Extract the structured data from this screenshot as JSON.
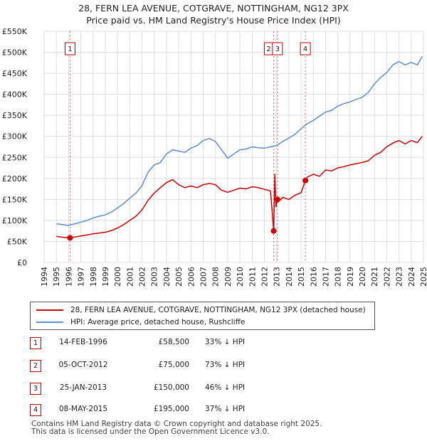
{
  "header": {
    "title_line1": "28, FERN LEA AVENUE, COTGRAVE, NOTTINGHAM, NG12 3PX",
    "title_line2": "Price paid vs. HM Land Registry's House Price Index (HPI)"
  },
  "chart_data": {
    "type": "line",
    "xlim": [
      1994,
      2025
    ],
    "ylim": [
      0,
      550000
    ],
    "yticks": [
      0,
      50000,
      100000,
      150000,
      200000,
      250000,
      300000,
      350000,
      400000,
      450000,
      500000,
      550000
    ],
    "ytick_labels": [
      "£0",
      "£50K",
      "£100K",
      "£150K",
      "£200K",
      "£250K",
      "£300K",
      "£350K",
      "£400K",
      "£450K",
      "£500K",
      "£550K"
    ],
    "xticks": [
      1994,
      1995,
      1996,
      1997,
      1998,
      1999,
      2000,
      2001,
      2002,
      2003,
      2004,
      2005,
      2006,
      2007,
      2008,
      2009,
      2010,
      2011,
      2012,
      2013,
      2014,
      2015,
      2016,
      2017,
      2018,
      2019,
      2020,
      2021,
      2022,
      2023,
      2024,
      2025
    ],
    "xtick_labels": [
      "1994",
      "1995",
      "1996",
      "1997",
      "1998",
      "1999",
      "2000",
      "2001",
      "2002",
      "2003",
      "2004",
      "2005",
      "2006",
      "2007",
      "2008",
      "2009",
      "2010",
      "2011",
      "2012",
      "2013",
      "2014",
      "2015",
      "2016",
      "2017",
      "2018",
      "2019",
      "2020",
      "2021",
      "2022",
      "2023",
      "2024",
      "2025"
    ],
    "grid": true,
    "series": [
      {
        "name": "28, FERN LEA AVENUE, COTGRAVE, NOTTINGHAM, NG12 3PX (detached house)",
        "color": "#cc0000",
        "x": [
          1995.0,
          1995.5,
          1996.12,
          1997,
          1998,
          1999,
          1999.5,
          2000,
          2000.5,
          2001,
          2001.5,
          2002,
          2002.5,
          2003,
          2003.5,
          2004,
          2004.5,
          2005,
          2005.5,
          2006,
          2006.5,
          2007,
          2007.5,
          2008,
          2008.5,
          2009,
          2009.5,
          2010,
          2010.5,
          2011,
          2011.5,
          2012,
          2012.5,
          2012.76,
          2012.85,
          2012.95,
          2013.07,
          2013.3,
          2013.5,
          2014,
          2014.5,
          2015,
          2015.35,
          2015.5,
          2016,
          2016.5,
          2017,
          2017.5,
          2018,
          2018.5,
          2019,
          2019.5,
          2020,
          2020.5,
          2021,
          2021.5,
          2022,
          2022.5,
          2023,
          2023.5,
          2024,
          2024.5,
          2024.9
        ],
        "y": [
          62000,
          60000,
          58500,
          63000,
          68000,
          72000,
          76000,
          82000,
          90000,
          100000,
          110000,
          125000,
          148000,
          165000,
          178000,
          190000,
          197000,
          185000,
          178000,
          182000,
          178000,
          185000,
          188000,
          185000,
          172000,
          167000,
          172000,
          177000,
          175000,
          180000,
          178000,
          174000,
          170000,
          75000,
          210000,
          132000,
          150000,
          148000,
          155000,
          150000,
          160000,
          166000,
          195000,
          203000,
          210000,
          205000,
          220000,
          218000,
          225000,
          228000,
          232000,
          235000,
          238000,
          242000,
          255000,
          262000,
          275000,
          284000,
          290000,
          282000,
          290000,
          285000,
          300000
        ]
      },
      {
        "name": "HPI: Average price, detached house, Rushcliffe",
        "color": "#5b8fd1",
        "x": [
          1995.0,
          1995.5,
          1996,
          1996.5,
          1997,
          1997.5,
          1998,
          1998.5,
          1999,
          1999.5,
          2000,
          2000.5,
          2001,
          2001.5,
          2002,
          2002.5,
          2003,
          2003.5,
          2004,
          2004.5,
          2005,
          2005.5,
          2006,
          2006.5,
          2007,
          2007.5,
          2008,
          2008.5,
          2009,
          2009.5,
          2010,
          2010.5,
          2011,
          2011.5,
          2012,
          2012.5,
          2013,
          2013.5,
          2014,
          2014.5,
          2015,
          2015.5,
          2016,
          2016.5,
          2017,
          2017.5,
          2018,
          2018.5,
          2019,
          2019.5,
          2020,
          2020.5,
          2021,
          2021.5,
          2022,
          2022.5,
          2023,
          2023.5,
          2024,
          2024.5,
          2024.9
        ],
        "y": [
          92000,
          90000,
          88000,
          92000,
          96000,
          100000,
          106000,
          110000,
          113000,
          120000,
          130000,
          140000,
          153000,
          165000,
          183000,
          215000,
          232000,
          238000,
          258000,
          268000,
          265000,
          262000,
          272000,
          278000,
          290000,
          295000,
          288000,
          268000,
          248000,
          258000,
          268000,
          270000,
          275000,
          273000,
          272000,
          275000,
          278000,
          288000,
          296000,
          305000,
          318000,
          330000,
          338000,
          348000,
          358000,
          362000,
          372000,
          378000,
          382000,
          388000,
          393000,
          405000,
          425000,
          440000,
          452000,
          470000,
          478000,
          470000,
          476000,
          470000,
          490000
        ]
      }
    ],
    "sales": [
      {
        "label": "1",
        "x": 1996.12,
        "y": 58500
      },
      {
        "label": "2",
        "x": 2012.76,
        "y": 75000
      },
      {
        "label": "3",
        "x": 2013.07,
        "y": 150000
      },
      {
        "label": "4",
        "x": 2015.35,
        "y": 195000
      }
    ],
    "top_markers": [
      {
        "label": "1",
        "x": 1996.12
      },
      {
        "label": "3",
        "x": 2013.07
      },
      {
        "label": "4",
        "x": 2015.35
      }
    ]
  },
  "legend": {
    "items": [
      {
        "label": "28, FERN LEA AVENUE, COTGRAVE, NOTTINGHAM, NG12 3PX (detached house)",
        "color": "#cc0000"
      },
      {
        "label": "HPI: Average price, detached house, Rushcliffe",
        "color": "#5b8fd1"
      }
    ]
  },
  "transactions": [
    {
      "num": "1",
      "date": "14-FEB-1996",
      "price": "£58,500",
      "hpi": "33% ↓ HPI"
    },
    {
      "num": "2",
      "date": "05-OCT-2012",
      "price": "£75,000",
      "hpi": "73% ↓ HPI"
    },
    {
      "num": "3",
      "date": "25-JAN-2013",
      "price": "£150,000",
      "hpi": "46% ↓ HPI"
    },
    {
      "num": "4",
      "date": "08-MAY-2015",
      "price": "£195,000",
      "hpi": "37% ↓ HPI"
    }
  ],
  "footer": {
    "line1": "Contains HM Land Registry data © Crown copyright and database right 2025.",
    "line2": "This data is licensed under the Open Government Licence v3.0."
  }
}
